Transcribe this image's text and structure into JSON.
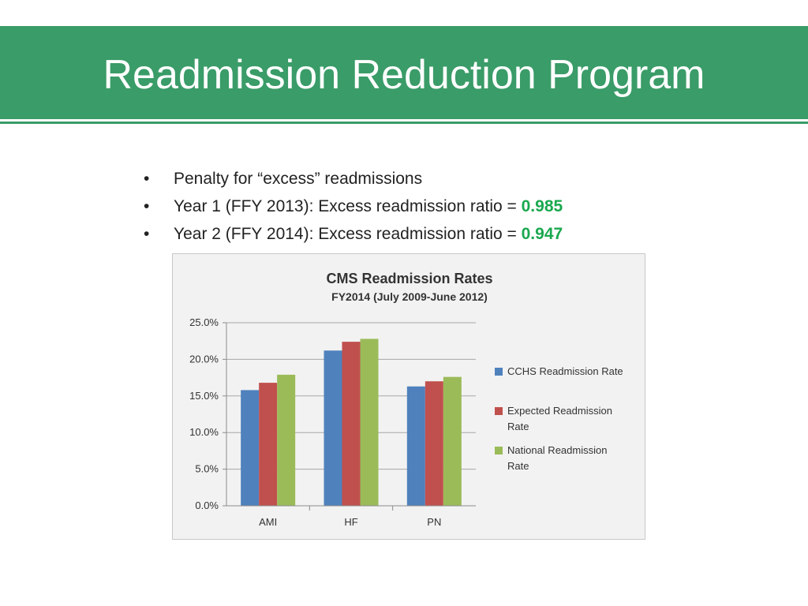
{
  "slide": {
    "title": "Readmission Reduction Program",
    "bullets": [
      {
        "text": "Penalty for “excess” readmissions",
        "value": ""
      },
      {
        "text": "Year 1 (FFY 2013):  Excess readmission ratio = ",
        "value": "0.985"
      },
      {
        "text": "Year 2 (FFY 2014):  Excess readmission ratio = ",
        "value": "0.947"
      }
    ],
    "colors": {
      "accent": "#3a9c68",
      "highlight": "#1aa84f"
    }
  },
  "chart_data": {
    "type": "bar",
    "title": "CMS Readmission Rates",
    "subtitle": "FY2014 (July 2009-June 2012)",
    "categories": [
      "AMI",
      "HF",
      "PN"
    ],
    "series": [
      {
        "name": "CCHS Readmission Rate",
        "color": "#4f81bd",
        "values": [
          15.8,
          21.2,
          16.3
        ]
      },
      {
        "name": "Expected Readmission Rate",
        "color": "#c0504d",
        "values": [
          16.8,
          22.4,
          17.0
        ]
      },
      {
        "name": "National Readmission Rate",
        "color": "#9bbb59",
        "values": [
          17.9,
          22.8,
          17.6
        ]
      }
    ],
    "yticks": [
      "0.0%",
      "5.0%",
      "10.0%",
      "15.0%",
      "20.0%",
      "25.0%"
    ],
    "ylim": [
      0,
      25
    ],
    "grid": true,
    "legend": "right"
  }
}
